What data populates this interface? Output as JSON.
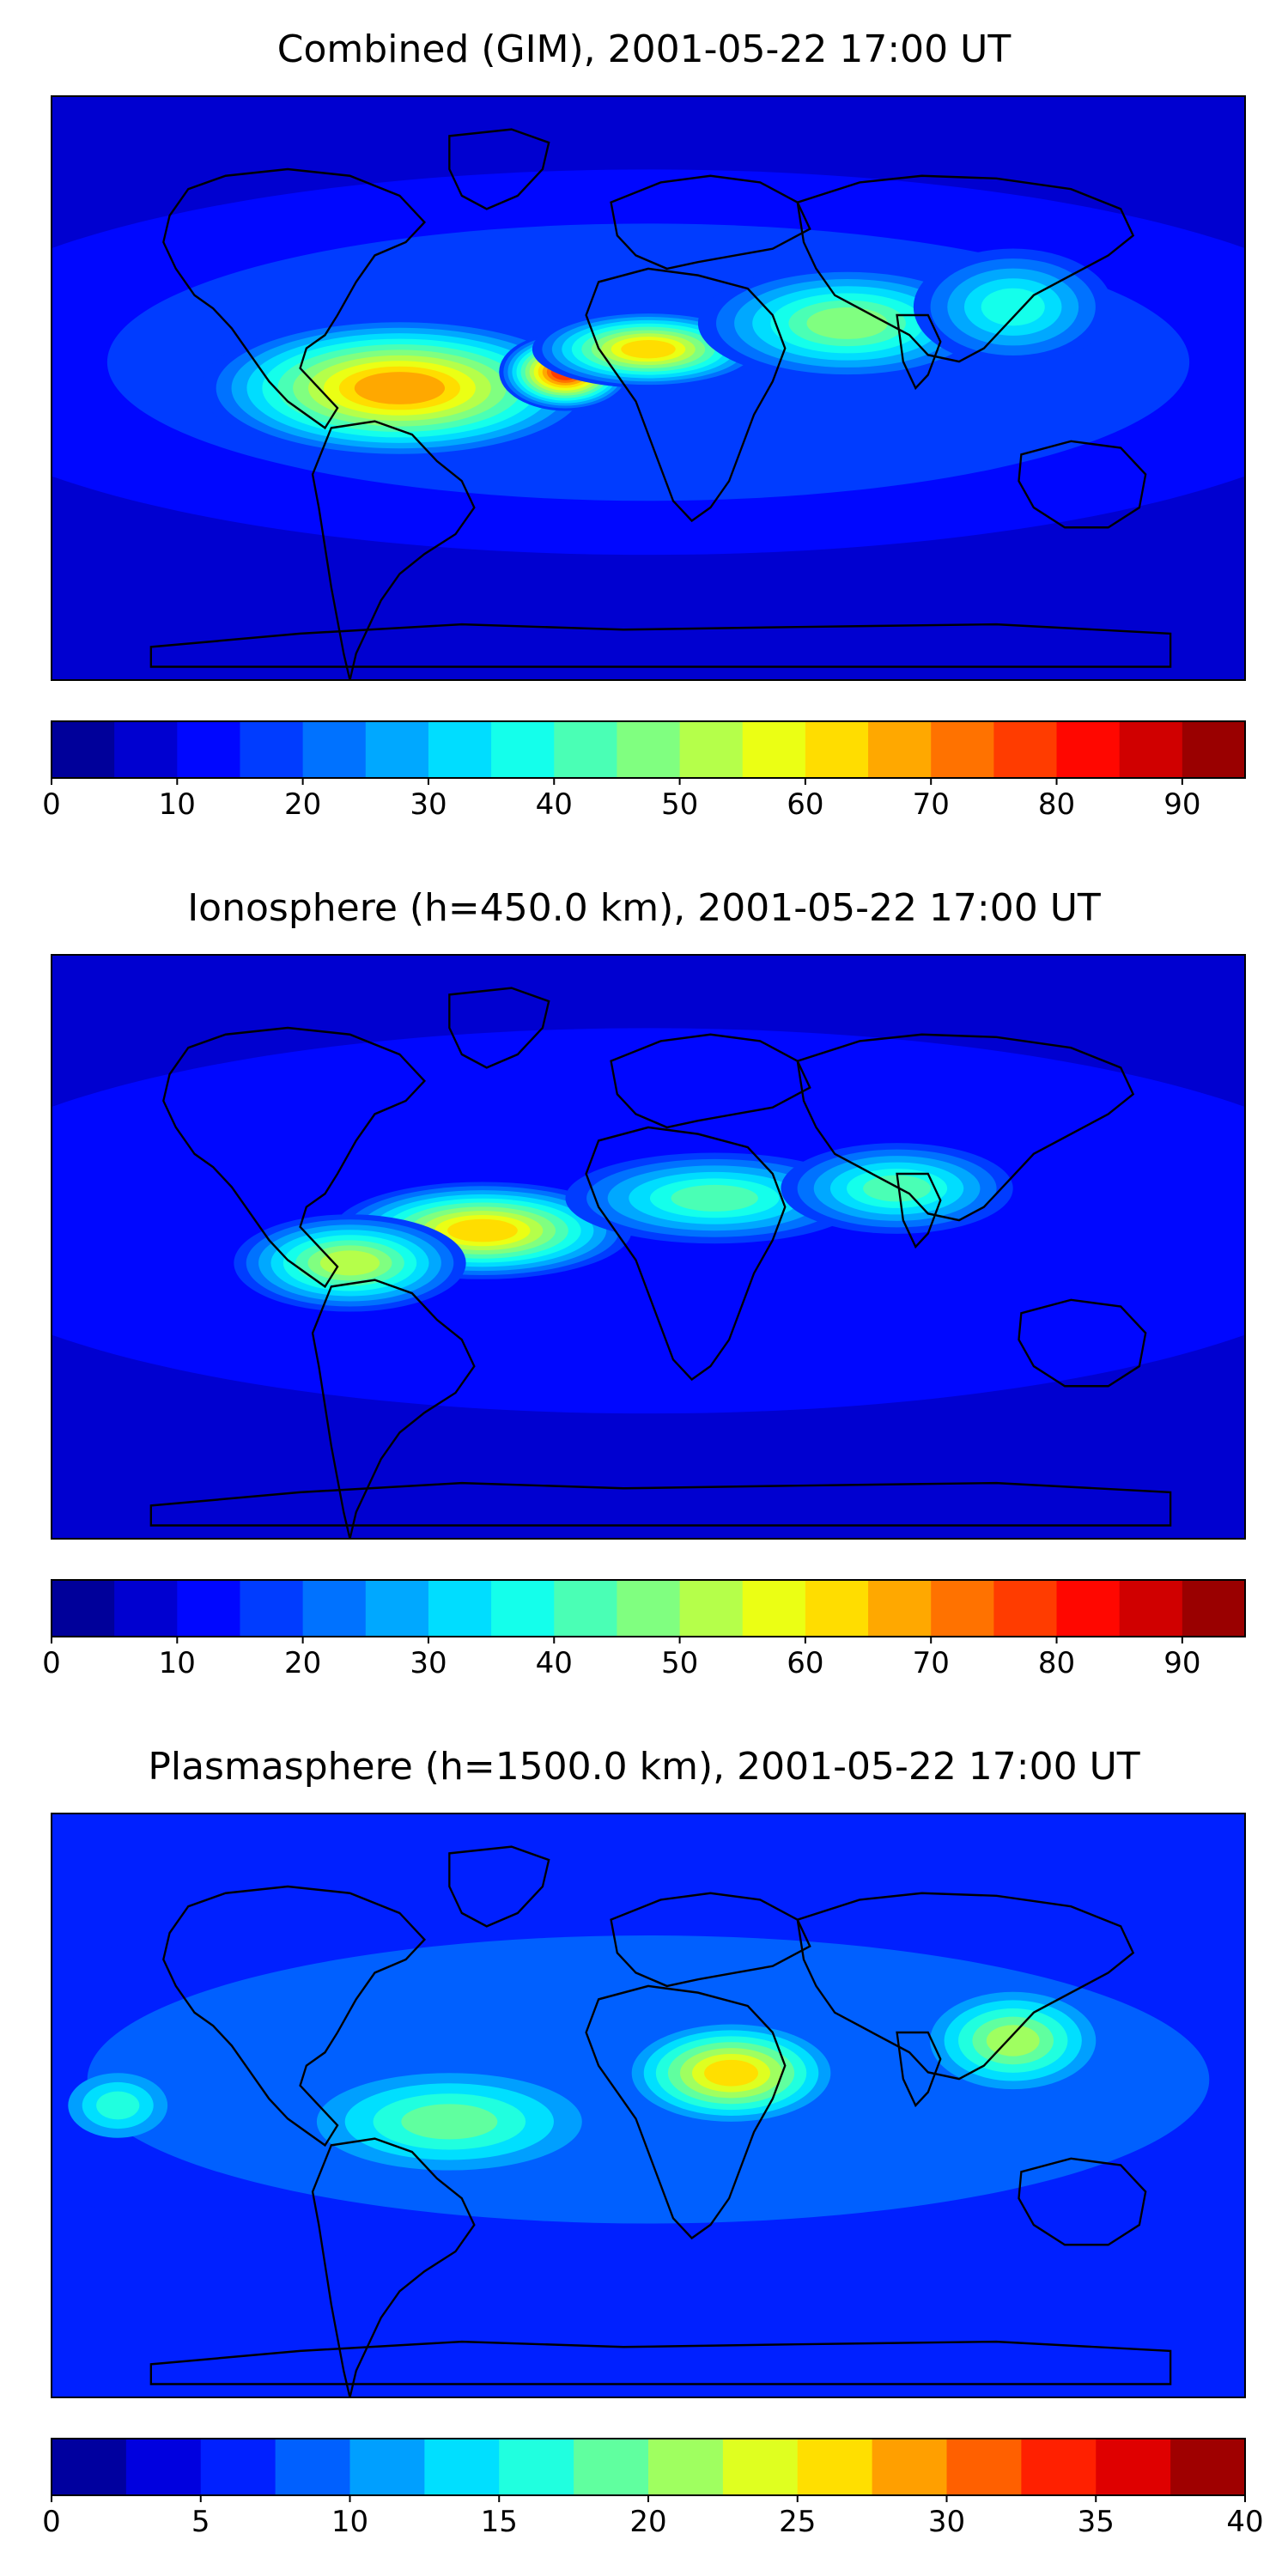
{
  "chart_data": [
    {
      "type": "heatmap",
      "title": "Combined (GIM), 2001-05-22 17:00 UT",
      "colorbar": {
        "levels": [
          0,
          5,
          10,
          15,
          20,
          25,
          30,
          35,
          40,
          45,
          50,
          55,
          60,
          65,
          70,
          75,
          80,
          85,
          90,
          95
        ],
        "ticks": [
          0,
          10,
          20,
          30,
          40,
          50,
          60,
          70,
          80,
          90
        ]
      },
      "hotspots": [
        {
          "lon": -75,
          "lat": 0,
          "value": 68,
          "w": 60,
          "h": 22
        },
        {
          "lon": -25,
          "lat": 5,
          "value": 76,
          "w": 20,
          "h": 12
        },
        {
          "lon": 0,
          "lat": 12,
          "value": 62,
          "w": 35,
          "h": 12
        },
        {
          "lon": 60,
          "lat": 20,
          "value": 47,
          "w": 45,
          "h": 18
        },
        {
          "lon": 110,
          "lat": 25,
          "value": 38,
          "w": 30,
          "h": 18
        }
      ],
      "background": 18,
      "landmass_labels": []
    },
    {
      "type": "heatmap",
      "title": "Ionosphere  (h=450.0 km), 2001-05-22 17:00 UT",
      "colorbar": {
        "levels": [
          0,
          5,
          10,
          15,
          20,
          25,
          30,
          35,
          40,
          45,
          50,
          55,
          60,
          65,
          70,
          75,
          80,
          85,
          90,
          95
        ],
        "ticks": [
          0,
          10,
          20,
          30,
          40,
          50,
          60,
          70,
          80,
          90
        ]
      },
      "hotspots": [
        {
          "lon": -50,
          "lat": 5,
          "value": 60,
          "w": 45,
          "h": 15
        },
        {
          "lon": -90,
          "lat": -5,
          "value": 52,
          "w": 35,
          "h": 15
        },
        {
          "lon": 20,
          "lat": 15,
          "value": 44,
          "w": 45,
          "h": 14
        },
        {
          "lon": 75,
          "lat": 18,
          "value": 40,
          "w": 35,
          "h": 14
        }
      ],
      "background": 16
    },
    {
      "type": "heatmap",
      "title": "Plasmasphere (h=1500.0 km), 2001-05-22 17:00 UT",
      "colorbar": {
        "levels": [
          0,
          2.5,
          5,
          7.5,
          10,
          12.5,
          15,
          17.5,
          20,
          22.5,
          25,
          27.5,
          30,
          32.5,
          35,
          37.5,
          40
        ],
        "ticks": [
          0,
          5,
          10,
          15,
          20,
          25,
          30,
          35,
          40
        ]
      },
      "hotspots": [
        {
          "lon": 25,
          "lat": 10,
          "value": 27,
          "w": 30,
          "h": 15
        },
        {
          "lon": 110,
          "lat": 20,
          "value": 22,
          "w": 25,
          "h": 15
        },
        {
          "lon": -60,
          "lat": -5,
          "value": 19,
          "w": 40,
          "h": 15
        },
        {
          "lon": -160,
          "lat": 0,
          "value": 16,
          "w": 15,
          "h": 10
        }
      ],
      "background": 10
    }
  ]
}
